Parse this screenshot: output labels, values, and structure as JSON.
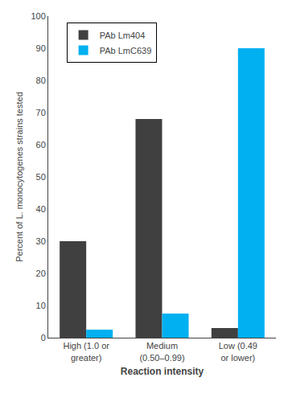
{
  "chart_data": {
    "type": "bar",
    "categories": [
      "High (1.0 or\ngreater)",
      "Medium\n(0.50–0.99)",
      "Low (0.49\nor lower)"
    ],
    "series": [
      {
        "name": "PAb Lm404",
        "color": "#404040",
        "values": [
          30,
          68,
          3
        ]
      },
      {
        "name": "PAb LmC639",
        "color": "#00b0f0",
        "values": [
          2.5,
          7.5,
          90
        ]
      }
    ],
    "xlabel": "Reaction intensity",
    "ylabel": "Percent of L. monocytogenes strains tested",
    "ylim": [
      0,
      100
    ],
    "yticks": [
      0,
      10,
      20,
      30,
      40,
      50,
      60,
      70,
      80,
      90,
      100
    ],
    "grid": false,
    "legend": "upper left"
  }
}
